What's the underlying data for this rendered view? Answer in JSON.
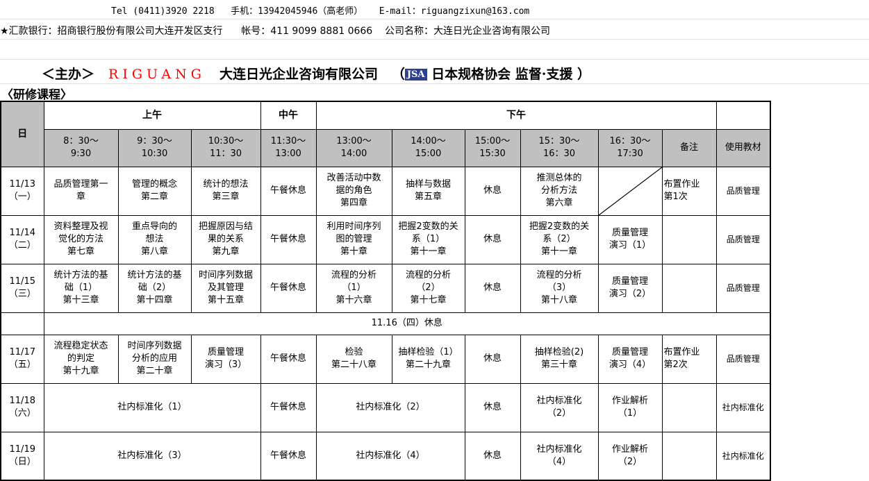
{
  "contact_line": "Tel (0411)3920 2218   手机：13942045946（高老师）   E-mail：riguangzixun@163.com",
  "bank_line": "★汇款银行：招商银行股份有限公司大连开发区支行      帐号：411 9099 8881 0666    公司名称：大连日光企业咨询有限公司",
  "title": {
    "host": "＜主办＞",
    "brand": "RIGUANG",
    "company": "大连日光企业咨询有限公司",
    "paren_open": "（",
    "logo": "JSA",
    "assoc": "日本规格协会 监督·支援 ）"
  },
  "subtitle": "〈研修课程〉",
  "colors": {
    "brand_red": "#ff0000",
    "header_gray": "#c0c0c0",
    "logo_blue": "#2d3f8f"
  },
  "table": {
    "header1": [
      {
        "text": "日",
        "rowspan": 2,
        "gray": true
      },
      {
        "text": "上午",
        "colspan": 3
      },
      {
        "text": "中午"
      },
      {
        "text": "下午",
        "colspan": 6
      },
      {
        "text": ""
      }
    ],
    "header2": [
      {
        "text": "8：30～\n9:30"
      },
      {
        "text": "9：30～\n10:30"
      },
      {
        "text": "10:30～\n11：30"
      },
      {
        "text": "11:30～\n13:00"
      },
      {
        "text": "13:00～\n14:00"
      },
      {
        "text": "14:00～\n15:00"
      },
      {
        "text": "15:00～\n15:30"
      },
      {
        "text": "15：30～\n16：30"
      },
      {
        "text": "16：30～\n17:30"
      },
      {
        "text": "备注"
      },
      {
        "text": "使用教材"
      }
    ],
    "rows": [
      {
        "h": 70,
        "cells": [
          {
            "text": "11/13\n（一）"
          },
          {
            "text": "品质管理第一\n章"
          },
          {
            "text": "管理的概念\n第二章"
          },
          {
            "text": "统计的想法\n第三章"
          },
          {
            "text": "午餐休息"
          },
          {
            "text": "改善活动中数\n据的角色\n第四章"
          },
          {
            "text": "抽样与数据\n第五章"
          },
          {
            "text": "休息"
          },
          {
            "text": "推测总体的\n分析方法\n第六章"
          },
          {
            "text": "",
            "diag": true
          },
          {
            "text": "布置作业\n第1次",
            "left": true
          },
          {
            "text": "品质管理",
            "small": true
          }
        ]
      },
      {
        "h": 70,
        "cells": [
          {
            "text": "11/14\n（二）"
          },
          {
            "text": "资料整理及视\n觉化的方法\n第七章"
          },
          {
            "text": "重点导向的\n想法\n第八章"
          },
          {
            "text": "把握原因与结\n果的关系\n第九章"
          },
          {
            "text": "午餐休息"
          },
          {
            "text": "利用时间序列\n图的管理\n第十章"
          },
          {
            "text": "把握2变数的关\n系（1）\n第十一章"
          },
          {
            "text": "休息"
          },
          {
            "text": "把握2变数的关\n系（2）\n第十一章"
          },
          {
            "text": "质量管理\n演习（1）"
          },
          {
            "text": ""
          },
          {
            "text": "品质管理",
            "small": true
          }
        ]
      },
      {
        "h": 70,
        "cells": [
          {
            "text": "11/15\n（三）"
          },
          {
            "text": "统计方法的基\n础（1）\n第十三章"
          },
          {
            "text": "统计方法的基\n础（2）\n第十四章"
          },
          {
            "text": "时间序列数据\n及其管理\n第十五章"
          },
          {
            "text": "午餐休息"
          },
          {
            "text": "流程的分析\n（1）\n第十六章"
          },
          {
            "text": "流程的分析\n（2）\n第十七章"
          },
          {
            "text": "休息"
          },
          {
            "text": "流程的分析\n（3）\n第十八章"
          },
          {
            "text": "质量管理\n演习（2）"
          },
          {
            "text": ""
          },
          {
            "text": "品质管理",
            "small": true
          }
        ]
      },
      {
        "h": 32,
        "cells": [
          {
            "text": ""
          },
          {
            "text": "11.16（四）休息",
            "colspan": 11
          }
        ]
      },
      {
        "h": 70,
        "cells": [
          {
            "text": "11/17\n（五）"
          },
          {
            "text": "流程稳定状态\n的判定\n第十九章"
          },
          {
            "text": "时间序列数据\n分析的应用\n第二十章"
          },
          {
            "text": "质量管理\n演习（3）"
          },
          {
            "text": "午餐休息"
          },
          {
            "text": "检验\n第二十八章"
          },
          {
            "text": "抽样检验（1）\n第二十九章"
          },
          {
            "text": "休息"
          },
          {
            "text": "抽样检验(2)\n第三十章"
          },
          {
            "text": "质量管理\n演习（4）"
          },
          {
            "text": "布置作业\n第2次",
            "left": true
          },
          {
            "text": "品质管理",
            "small": true
          }
        ]
      },
      {
        "h": 70,
        "cells": [
          {
            "text": "11/18\n（六）"
          },
          {
            "text": "社内标准化（1）",
            "colspan": 3
          },
          {
            "text": "午餐休息"
          },
          {
            "text": "社内标准化（2）",
            "colspan": 2
          },
          {
            "text": "休息"
          },
          {
            "text": "社内标准化\n（2）"
          },
          {
            "text": "作业解析\n（1）"
          },
          {
            "text": ""
          },
          {
            "text": "社内标准化",
            "small": true
          }
        ]
      },
      {
        "h": 70,
        "cells": [
          {
            "text": "11/19\n（日）"
          },
          {
            "text": "社内标准化（3）",
            "colspan": 3
          },
          {
            "text": "午餐休息"
          },
          {
            "text": "社内标准化（4）",
            "colspan": 2
          },
          {
            "text": "休息"
          },
          {
            "text": "社内标准化\n（4）"
          },
          {
            "text": "作业解析\n（2）"
          },
          {
            "text": ""
          },
          {
            "text": "社内标准化",
            "small": true
          }
        ]
      }
    ]
  }
}
